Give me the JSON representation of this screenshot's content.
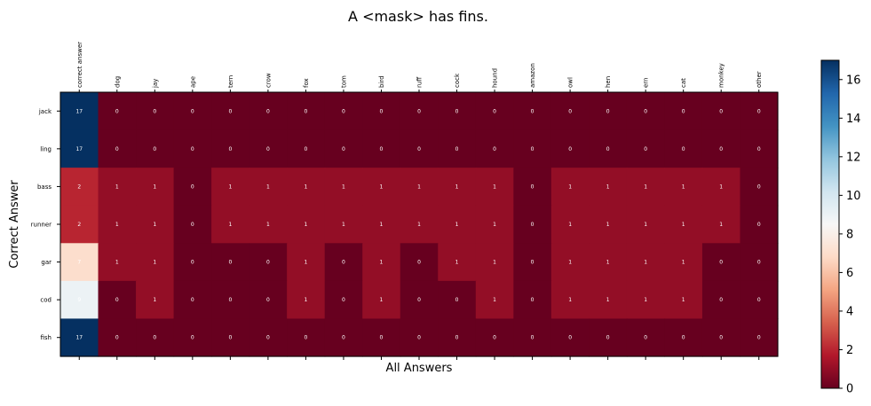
{
  "chart_data": {
    "type": "heatmap",
    "title": "A <mask> has fins.",
    "xlabel": "All Answers",
    "ylabel": "Correct Answer",
    "x_categories": [
      "correct answer",
      "dog",
      "jay",
      "ape",
      "tern",
      "crow",
      "fox",
      "tom",
      "bird",
      "ruff",
      "cock",
      "hound",
      "amazon",
      "owl",
      "hen",
      "ern",
      "cat",
      "monkey",
      "other"
    ],
    "y_categories": [
      "jack",
      "ling",
      "bass",
      "runner",
      "gar",
      "cod",
      "fish"
    ],
    "values": [
      [
        17,
        0,
        0,
        0,
        0,
        0,
        0,
        0,
        0,
        0,
        0,
        0,
        0,
        0,
        0,
        0,
        0,
        0,
        0
      ],
      [
        17,
        0,
        0,
        0,
        0,
        0,
        0,
        0,
        0,
        0,
        0,
        0,
        0,
        0,
        0,
        0,
        0,
        0,
        0
      ],
      [
        2,
        1,
        1,
        0,
        1,
        1,
        1,
        1,
        1,
        1,
        1,
        1,
        0,
        1,
        1,
        1,
        1,
        1,
        0
      ],
      [
        2,
        1,
        1,
        0,
        1,
        1,
        1,
        1,
        1,
        1,
        1,
        1,
        0,
        1,
        1,
        1,
        1,
        1,
        0
      ],
      [
        7,
        1,
        1,
        0,
        0,
        0,
        1,
        0,
        1,
        0,
        1,
        1,
        0,
        1,
        1,
        1,
        1,
        0,
        0
      ],
      [
        9,
        0,
        1,
        0,
        0,
        0,
        1,
        0,
        1,
        0,
        0,
        1,
        0,
        1,
        1,
        1,
        1,
        0,
        0
      ],
      [
        17,
        0,
        0,
        0,
        0,
        0,
        0,
        0,
        0,
        0,
        0,
        0,
        0,
        0,
        0,
        0,
        0,
        0,
        0
      ]
    ],
    "colorbar": {
      "colormap": "RdBu",
      "range": [
        0,
        17
      ],
      "ticks": [
        0,
        2,
        4,
        6,
        8,
        10,
        12,
        14,
        16
      ]
    },
    "grid": false
  }
}
